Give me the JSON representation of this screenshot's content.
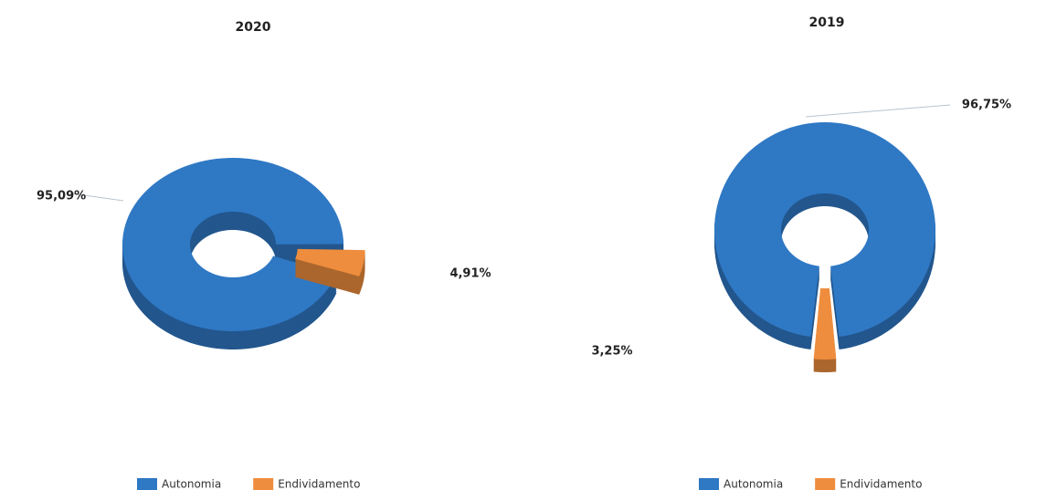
{
  "chart_data": [
    {
      "type": "donut",
      "title": "2020",
      "categories": [
        "Autonomia",
        "Endividamento"
      ],
      "values": [
        95.09,
        4.91
      ],
      "value_labels": [
        "95,09%",
        "4,91%"
      ],
      "colors": [
        "#2f78c4",
        "#ee8d3e"
      ]
    },
    {
      "type": "donut",
      "title": "2019",
      "categories": [
        "Autonomia",
        "Endividamento"
      ],
      "values": [
        96.75,
        3.25
      ],
      "value_labels": [
        "96,75%",
        "3,25%"
      ],
      "colors": [
        "#2f78c4",
        "#ee8d3e"
      ]
    }
  ]
}
